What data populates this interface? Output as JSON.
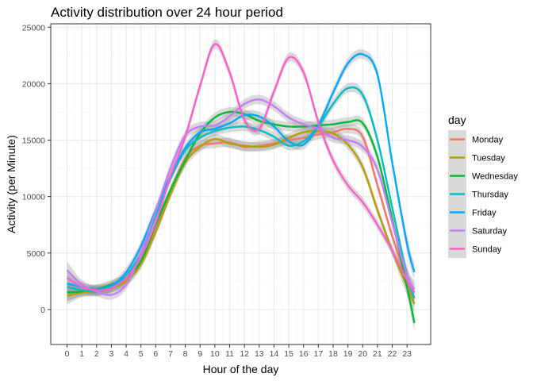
{
  "chart_data": {
    "type": "line",
    "title": "Activity distribution over 24 hour period",
    "xlabel": "Hour of the day",
    "ylabel": "Activity (per Minute)",
    "xlim": [
      -1.1,
      24.6
    ],
    "ylim": [
      -3100,
      25300
    ],
    "x_ticks": [
      "0",
      "1",
      "2",
      "3",
      "4",
      "5",
      "6",
      "7",
      "8",
      "9",
      "10",
      "11",
      "12",
      "13",
      "14",
      "15",
      "16",
      "17",
      "18",
      "19",
      "20",
      "21",
      "22",
      "23"
    ],
    "y_ticks": [
      0,
      5000,
      10000,
      15000,
      20000,
      25000
    ],
    "y_tick_labels": [
      "0",
      "5000",
      "10000",
      "15000",
      "20000",
      "25000"
    ],
    "grid": true,
    "legend_position": "right",
    "legend_title": "day",
    "x": [
      0,
      1,
      2,
      3,
      4,
      5,
      6,
      7,
      8,
      9,
      10,
      11,
      12,
      13,
      14,
      15,
      16,
      17,
      18,
      19,
      20,
      21,
      22,
      23,
      23.5
    ],
    "series": [
      {
        "name": "Monday",
        "color": "#F8766D",
        "values": [
          1500,
          1600,
          1700,
          2000,
          2600,
          4200,
          7000,
          10400,
          13400,
          14500,
          14700,
          14800,
          14400,
          14500,
          14700,
          15000,
          15200,
          15500,
          15700,
          16000,
          15300,
          11000,
          6500,
          2600,
          1000
        ]
      },
      {
        "name": "Tuesday",
        "color": "#B79F00",
        "values": [
          1200,
          1500,
          1600,
          1900,
          2500,
          4000,
          6900,
          10200,
          13000,
          14400,
          15100,
          14700,
          14500,
          14400,
          14600,
          15200,
          15700,
          15800,
          15600,
          14600,
          12600,
          8800,
          5200,
          2000,
          500
        ]
      },
      {
        "name": "Wednesday",
        "color": "#00BA38",
        "values": [
          1500,
          1600,
          1800,
          2200,
          2800,
          4300,
          7500,
          10600,
          13200,
          15600,
          17000,
          17500,
          17300,
          16700,
          16400,
          16200,
          16200,
          16300,
          16400,
          16600,
          16500,
          13500,
          8000,
          2000,
          -1200
        ]
      },
      {
        "name": "Thursday",
        "color": "#00BFC4",
        "values": [
          2000,
          1700,
          1600,
          2000,
          3000,
          5000,
          8300,
          11600,
          14100,
          15200,
          15800,
          16100,
          16200,
          15900,
          15300,
          14500,
          14900,
          16200,
          18200,
          19600,
          19000,
          15000,
          9000,
          3000,
          1000
        ]
      },
      {
        "name": "Friday",
        "color": "#00A9FF",
        "values": [
          2300,
          2000,
          1800,
          2100,
          3300,
          5600,
          8800,
          11800,
          14300,
          15700,
          16000,
          16500,
          17200,
          17100,
          16200,
          14900,
          14600,
          16300,
          19200,
          21800,
          22600,
          20800,
          13000,
          5800,
          3300
        ]
      },
      {
        "name": "Saturday",
        "color": "#C77CFF",
        "values": [
          3500,
          2200,
          1600,
          1300,
          2200,
          5000,
          8700,
          12500,
          15400,
          16200,
          16300,
          17100,
          18200,
          18600,
          18000,
          17000,
          16400,
          16000,
          15200,
          15000,
          14400,
          12400,
          7700,
          3000,
          1800
        ]
      },
      {
        "name": "Sunday",
        "color": "#FF61CC",
        "values": [
          2800,
          2000,
          1700,
          1900,
          2800,
          4700,
          7700,
          11800,
          15300,
          19800,
          23500,
          21000,
          16800,
          16000,
          19300,
          22300,
          21000,
          16600,
          13200,
          11000,
          9500,
          7500,
          5200,
          2600,
          1500
        ]
      }
    ]
  }
}
